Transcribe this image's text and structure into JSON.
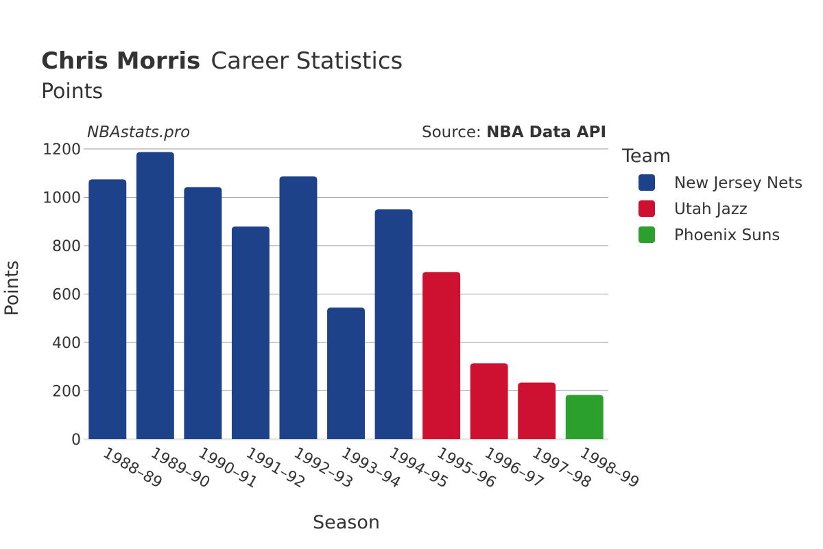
{
  "header": {
    "title_bold": "Chris Morris",
    "title_rest": "Career Statistics",
    "subtitle": "Points",
    "watermark": "NBAstats.pro",
    "source_prefix": "Source: ",
    "source_name": "NBA Data API"
  },
  "legend": {
    "title": "Team",
    "items": [
      {
        "label": "New Jersey Nets",
        "color": "#1d428a"
      },
      {
        "label": "Utah Jazz",
        "color": "#ce1130"
      },
      {
        "label": "Phoenix Suns",
        "color": "#2ca02c"
      }
    ]
  },
  "chart_data": {
    "type": "bar",
    "xlabel": "Season",
    "ylabel": "Points",
    "ylim": [
      0,
      1200
    ],
    "yticks": [
      0,
      200,
      400,
      600,
      800,
      1000,
      1200
    ],
    "grid": true,
    "legend_position": "right",
    "categories": [
      "1988–89",
      "1989–90",
      "1990–91",
      "1991–92",
      "1992–93",
      "1993–94",
      "1994–95",
      "1995–96",
      "1996–97",
      "1997–98",
      "1998–99"
    ],
    "values": [
      1074,
      1187,
      1042,
      879,
      1086,
      544,
      950,
      691,
      314,
      234,
      183
    ],
    "teams": [
      "New Jersey Nets",
      "New Jersey Nets",
      "New Jersey Nets",
      "New Jersey Nets",
      "New Jersey Nets",
      "New Jersey Nets",
      "New Jersey Nets",
      "Utah Jazz",
      "Utah Jazz",
      "Utah Jazz",
      "Phoenix Suns"
    ]
  }
}
